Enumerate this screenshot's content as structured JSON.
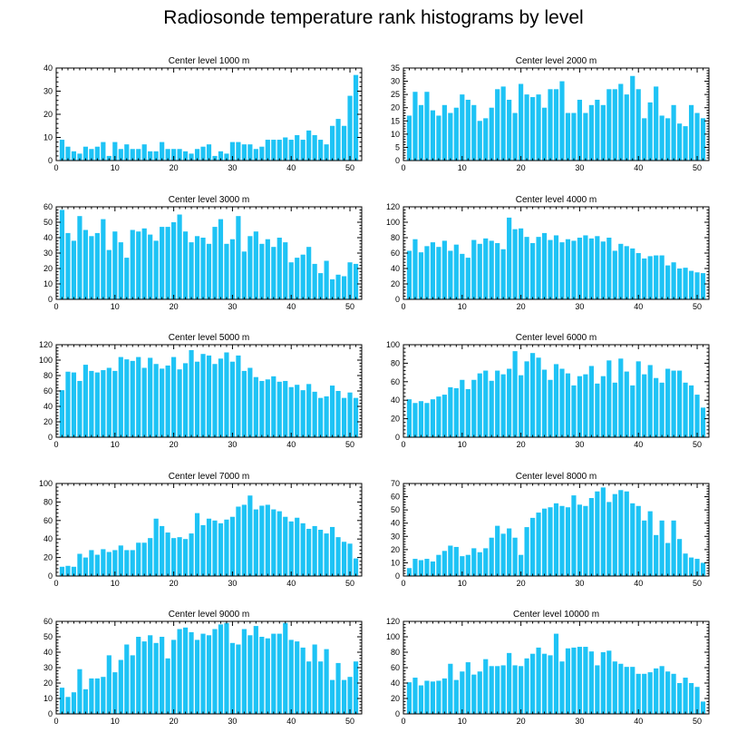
{
  "figure_title": "Radiosonde temperature rank histograms by level",
  "colors": {
    "bar": "#1ec3f5",
    "axis": "#000000",
    "background": "#ffffff"
  },
  "chart_data": [
    {
      "type": "bar",
      "title": "Center level 1000 m",
      "xlabel": "",
      "ylabel": "",
      "xlim": [
        0,
        52
      ],
      "xticks": [
        0,
        10,
        20,
        30,
        40,
        50
      ],
      "ylim": [
        0,
        40
      ],
      "yticks": [
        0,
        10,
        20,
        30,
        40
      ],
      "categories": [
        1,
        2,
        3,
        4,
        5,
        6,
        7,
        8,
        9,
        10,
        11,
        12,
        13,
        14,
        15,
        16,
        17,
        18,
        19,
        20,
        21,
        22,
        23,
        24,
        25,
        26,
        27,
        28,
        29,
        30,
        31,
        32,
        33,
        34,
        35,
        36,
        37,
        38,
        39,
        40,
        41,
        42,
        43,
        44,
        45,
        46,
        47,
        48,
        49,
        50,
        51
      ],
      "values": [
        9,
        6,
        4,
        3,
        6,
        5,
        6,
        8,
        2,
        8,
        5,
        7,
        5,
        5,
        7,
        4,
        4,
        8,
        5,
        5,
        5,
        4,
        3,
        5,
        6,
        7,
        2,
        4,
        3,
        8,
        8,
        7,
        7,
        5,
        6,
        9,
        9,
        9,
        10,
        9,
        11,
        9,
        13,
        11,
        9,
        7,
        15,
        18,
        15,
        28,
        37
      ]
    },
    {
      "type": "bar",
      "title": "Center level 2000 m",
      "xlabel": "",
      "ylabel": "",
      "xlim": [
        0,
        52
      ],
      "xticks": [
        0,
        10,
        20,
        30,
        40,
        50
      ],
      "ylim": [
        0,
        35
      ],
      "yticks": [
        0,
        5,
        10,
        15,
        20,
        25,
        30,
        35
      ],
      "categories": [
        1,
        2,
        3,
        4,
        5,
        6,
        7,
        8,
        9,
        10,
        11,
        12,
        13,
        14,
        15,
        16,
        17,
        18,
        19,
        20,
        21,
        22,
        23,
        24,
        25,
        26,
        27,
        28,
        29,
        30,
        31,
        32,
        33,
        34,
        35,
        36,
        37,
        38,
        39,
        40,
        41,
        42,
        43,
        44,
        45,
        46,
        47,
        48,
        49,
        50,
        51
      ],
      "values": [
        17,
        26,
        21,
        26,
        19,
        17,
        21,
        18,
        20,
        25,
        23,
        21,
        15,
        16,
        20,
        27,
        28,
        23,
        18,
        29,
        25,
        24,
        25,
        20,
        27,
        27,
        30,
        18,
        18,
        23,
        18,
        21,
        23,
        21,
        27,
        27,
        29,
        25,
        32,
        27,
        16,
        22,
        28,
        17,
        16,
        21,
        14,
        13,
        21,
        18,
        16
      ]
    },
    {
      "type": "bar",
      "title": "Center level 3000 m",
      "xlabel": "",
      "ylabel": "",
      "xlim": [
        0,
        52
      ],
      "xticks": [
        0,
        10,
        20,
        30,
        40,
        50
      ],
      "ylim": [
        0,
        60
      ],
      "yticks": [
        0,
        10,
        20,
        30,
        40,
        50,
        60
      ],
      "categories": [
        1,
        2,
        3,
        4,
        5,
        6,
        7,
        8,
        9,
        10,
        11,
        12,
        13,
        14,
        15,
        16,
        17,
        18,
        19,
        20,
        21,
        22,
        23,
        24,
        25,
        26,
        27,
        28,
        29,
        30,
        31,
        32,
        33,
        34,
        35,
        36,
        37,
        38,
        39,
        40,
        41,
        42,
        43,
        44,
        45,
        46,
        47,
        48,
        49,
        50,
        51
      ],
      "values": [
        58,
        43,
        38,
        54,
        45,
        41,
        43,
        52,
        32,
        44,
        37,
        27,
        45,
        44,
        46,
        42,
        38,
        47,
        47,
        50,
        55,
        44,
        37,
        41,
        40,
        36,
        47,
        52,
        36,
        39,
        54,
        31,
        41,
        44,
        36,
        39,
        34,
        40,
        37,
        24,
        27,
        29,
        34,
        23,
        17,
        25,
        13,
        16,
        15,
        24,
        23
      ]
    },
    {
      "type": "bar",
      "title": "Center level 4000 m",
      "xlabel": "",
      "ylabel": "",
      "xlim": [
        0,
        52
      ],
      "xticks": [
        0,
        10,
        20,
        30,
        40,
        50
      ],
      "ylim": [
        0,
        120
      ],
      "yticks": [
        0,
        20,
        40,
        60,
        80,
        100,
        120
      ],
      "categories": [
        1,
        2,
        3,
        4,
        5,
        6,
        7,
        8,
        9,
        10,
        11,
        12,
        13,
        14,
        15,
        16,
        17,
        18,
        19,
        20,
        21,
        22,
        23,
        24,
        25,
        26,
        27,
        28,
        29,
        30,
        31,
        32,
        33,
        34,
        35,
        36,
        37,
        38,
        39,
        40,
        41,
        42,
        43,
        44,
        45,
        46,
        47,
        48,
        49,
        50,
        51
      ],
      "values": [
        63,
        78,
        61,
        69,
        74,
        68,
        76,
        63,
        71,
        59,
        54,
        77,
        72,
        79,
        76,
        73,
        65,
        106,
        91,
        92,
        81,
        73,
        81,
        86,
        77,
        83,
        74,
        78,
        76,
        80,
        83,
        79,
        82,
        75,
        80,
        63,
        72,
        69,
        66,
        60,
        53,
        56,
        57,
        57,
        44,
        48,
        40,
        41,
        37,
        35,
        34
      ]
    },
    {
      "type": "bar",
      "title": "Center level 5000 m",
      "xlabel": "",
      "ylabel": "",
      "xlim": [
        0,
        52
      ],
      "xticks": [
        0,
        10,
        20,
        30,
        40,
        50
      ],
      "ylim": [
        0,
        120
      ],
      "yticks": [
        0,
        20,
        40,
        60,
        80,
        100,
        120
      ],
      "categories": [
        1,
        2,
        3,
        4,
        5,
        6,
        7,
        8,
        9,
        10,
        11,
        12,
        13,
        14,
        15,
        16,
        17,
        18,
        19,
        20,
        21,
        22,
        23,
        24,
        25,
        26,
        27,
        28,
        29,
        30,
        31,
        32,
        33,
        34,
        35,
        36,
        37,
        38,
        39,
        40,
        41,
        42,
        43,
        44,
        45,
        46,
        47,
        48,
        49,
        50,
        51
      ],
      "values": [
        61,
        85,
        84,
        73,
        94,
        86,
        84,
        87,
        90,
        86,
        104,
        101,
        99,
        104,
        90,
        103,
        95,
        89,
        93,
        104,
        88,
        96,
        113,
        98,
        108,
        106,
        95,
        102,
        110,
        98,
        106,
        86,
        90,
        78,
        73,
        75,
        79,
        72,
        73,
        65,
        68,
        61,
        69,
        59,
        51,
        53,
        67,
        60,
        51,
        58,
        51
      ]
    },
    {
      "type": "bar",
      "title": "Center level 6000 m",
      "xlabel": "",
      "ylabel": "",
      "xlim": [
        0,
        52
      ],
      "xticks": [
        0,
        10,
        20,
        30,
        40,
        50
      ],
      "ylim": [
        0,
        100
      ],
      "yticks": [
        0,
        20,
        40,
        60,
        80,
        100
      ],
      "categories": [
        1,
        2,
        3,
        4,
        5,
        6,
        7,
        8,
        9,
        10,
        11,
        12,
        13,
        14,
        15,
        16,
        17,
        18,
        19,
        20,
        21,
        22,
        23,
        24,
        25,
        26,
        27,
        28,
        29,
        30,
        31,
        32,
        33,
        34,
        35,
        36,
        37,
        38,
        39,
        40,
        41,
        42,
        43,
        44,
        45,
        46,
        47,
        48,
        49,
        50,
        51
      ],
      "values": [
        41,
        37,
        39,
        37,
        41,
        44,
        46,
        54,
        53,
        62,
        52,
        62,
        69,
        72,
        61,
        72,
        68,
        74,
        93,
        67,
        82,
        91,
        86,
        73,
        62,
        79,
        74,
        69,
        56,
        66,
        68,
        77,
        58,
        66,
        83,
        59,
        85,
        71,
        56,
        82,
        68,
        78,
        64,
        59,
        74,
        72,
        72,
        59,
        56,
        46,
        32
      ]
    },
    {
      "type": "bar",
      "title": "Center level 7000 m",
      "xlabel": "",
      "ylabel": "",
      "xlim": [
        0,
        52
      ],
      "xticks": [
        0,
        10,
        20,
        30,
        40,
        50
      ],
      "ylim": [
        0,
        100
      ],
      "yticks": [
        0,
        20,
        40,
        60,
        80,
        100
      ],
      "categories": [
        1,
        2,
        3,
        4,
        5,
        6,
        7,
        8,
        9,
        10,
        11,
        12,
        13,
        14,
        15,
        16,
        17,
        18,
        19,
        20,
        21,
        22,
        23,
        24,
        25,
        26,
        27,
        28,
        29,
        30,
        31,
        32,
        33,
        34,
        35,
        36,
        37,
        38,
        39,
        40,
        41,
        42,
        43,
        44,
        45,
        46,
        47,
        48,
        49,
        50,
        51
      ],
      "values": [
        10,
        11,
        10,
        24,
        20,
        28,
        23,
        29,
        26,
        28,
        33,
        28,
        28,
        36,
        36,
        41,
        62,
        54,
        47,
        41,
        42,
        40,
        46,
        68,
        55,
        62,
        60,
        57,
        61,
        64,
        75,
        77,
        87,
        72,
        76,
        77,
        72,
        70,
        64,
        59,
        63,
        57,
        51,
        54,
        50,
        46,
        53,
        42,
        37,
        35,
        19
      ]
    },
    {
      "type": "bar",
      "title": "Center level 8000 m",
      "xlabel": "",
      "ylabel": "",
      "xlim": [
        0,
        52
      ],
      "xticks": [
        0,
        10,
        20,
        30,
        40,
        50
      ],
      "ylim": [
        0,
        70
      ],
      "yticks": [
        0,
        10,
        20,
        30,
        40,
        50,
        60,
        70
      ],
      "categories": [
        1,
        2,
        3,
        4,
        5,
        6,
        7,
        8,
        9,
        10,
        11,
        12,
        13,
        14,
        15,
        16,
        17,
        18,
        19,
        20,
        21,
        22,
        23,
        24,
        25,
        26,
        27,
        28,
        29,
        30,
        31,
        32,
        33,
        34,
        35,
        36,
        37,
        38,
        39,
        40,
        41,
        42,
        43,
        44,
        45,
        46,
        47,
        48,
        49,
        50,
        51
      ],
      "values": [
        6,
        13,
        12,
        13,
        11,
        16,
        19,
        23,
        22,
        15,
        16,
        21,
        18,
        21,
        29,
        38,
        32,
        36,
        29,
        16,
        37,
        44,
        48,
        51,
        52,
        55,
        53,
        52,
        61,
        54,
        53,
        59,
        64,
        67,
        56,
        62,
        65,
        64,
        55,
        53,
        42,
        49,
        31,
        42,
        25,
        42,
        28,
        17,
        14,
        13,
        10
      ]
    },
    {
      "type": "bar",
      "title": "Center level 9000 m",
      "xlabel": "",
      "ylabel": "",
      "xlim": [
        0,
        52
      ],
      "xticks": [
        0,
        10,
        20,
        30,
        40,
        50
      ],
      "ylim": [
        0,
        60
      ],
      "yticks": [
        0,
        10,
        20,
        30,
        40,
        50,
        60
      ],
      "categories": [
        1,
        2,
        3,
        4,
        5,
        6,
        7,
        8,
        9,
        10,
        11,
        12,
        13,
        14,
        15,
        16,
        17,
        18,
        19,
        20,
        21,
        22,
        23,
        24,
        25,
        26,
        27,
        28,
        29,
        30,
        31,
        32,
        33,
        34,
        35,
        36,
        37,
        38,
        39,
        40,
        41,
        42,
        43,
        44,
        45,
        46,
        47,
        48,
        49,
        50,
        51
      ],
      "values": [
        17,
        11,
        14,
        29,
        16,
        23,
        23,
        24,
        38,
        27,
        35,
        45,
        38,
        50,
        47,
        51,
        46,
        50,
        36,
        48,
        55,
        56,
        53,
        48,
        52,
        51,
        55,
        58,
        59,
        46,
        45,
        55,
        51,
        57,
        50,
        49,
        52,
        52,
        59,
        48,
        47,
        43,
        34,
        45,
        34,
        42,
        22,
        33,
        22,
        24,
        34
      ]
    },
    {
      "type": "bar",
      "title": "Center level 10000 m",
      "xlabel": "",
      "ylabel": "",
      "xlim": [
        0,
        52
      ],
      "xticks": [
        0,
        10,
        20,
        30,
        40,
        50
      ],
      "ylim": [
        0,
        120
      ],
      "yticks": [
        0,
        20,
        40,
        60,
        80,
        100,
        120
      ],
      "categories": [
        1,
        2,
        3,
        4,
        5,
        6,
        7,
        8,
        9,
        10,
        11,
        12,
        13,
        14,
        15,
        16,
        17,
        18,
        19,
        20,
        21,
        22,
        23,
        24,
        25,
        26,
        27,
        28,
        29,
        30,
        31,
        32,
        33,
        34,
        35,
        36,
        37,
        38,
        39,
        40,
        41,
        42,
        43,
        44,
        45,
        46,
        47,
        48,
        49,
        50,
        51
      ],
      "values": [
        41,
        47,
        37,
        43,
        42,
        43,
        46,
        65,
        44,
        55,
        67,
        51,
        55,
        71,
        62,
        62,
        63,
        79,
        63,
        62,
        72,
        78,
        86,
        78,
        76,
        104,
        68,
        85,
        86,
        87,
        87,
        81,
        63,
        80,
        82,
        68,
        65,
        61,
        61,
        52,
        52,
        54,
        59,
        62,
        55,
        52,
        40,
        47,
        40,
        35,
        16
      ]
    }
  ]
}
